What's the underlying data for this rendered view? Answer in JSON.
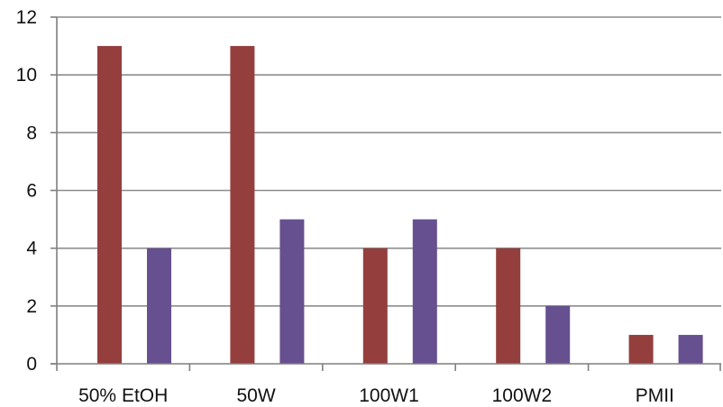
{
  "chart_data": {
    "type": "bar",
    "categories": [
      "50% EtOH",
      "50W",
      "100W1",
      "100W2",
      "PMII"
    ],
    "series": [
      {
        "values": [
          11,
          11,
          4,
          4,
          1
        ],
        "color": "#943F3D"
      },
      {
        "values": [
          4,
          5,
          5,
          2,
          1
        ],
        "color": "#67508F"
      }
    ],
    "title": "",
    "xlabel": "",
    "ylabel": "",
    "ylim": [
      0,
      12
    ],
    "yticks": [
      "0",
      "2",
      "4",
      "6",
      "8",
      "10",
      "12"
    ],
    "grid": true,
    "legend": "none"
  }
}
